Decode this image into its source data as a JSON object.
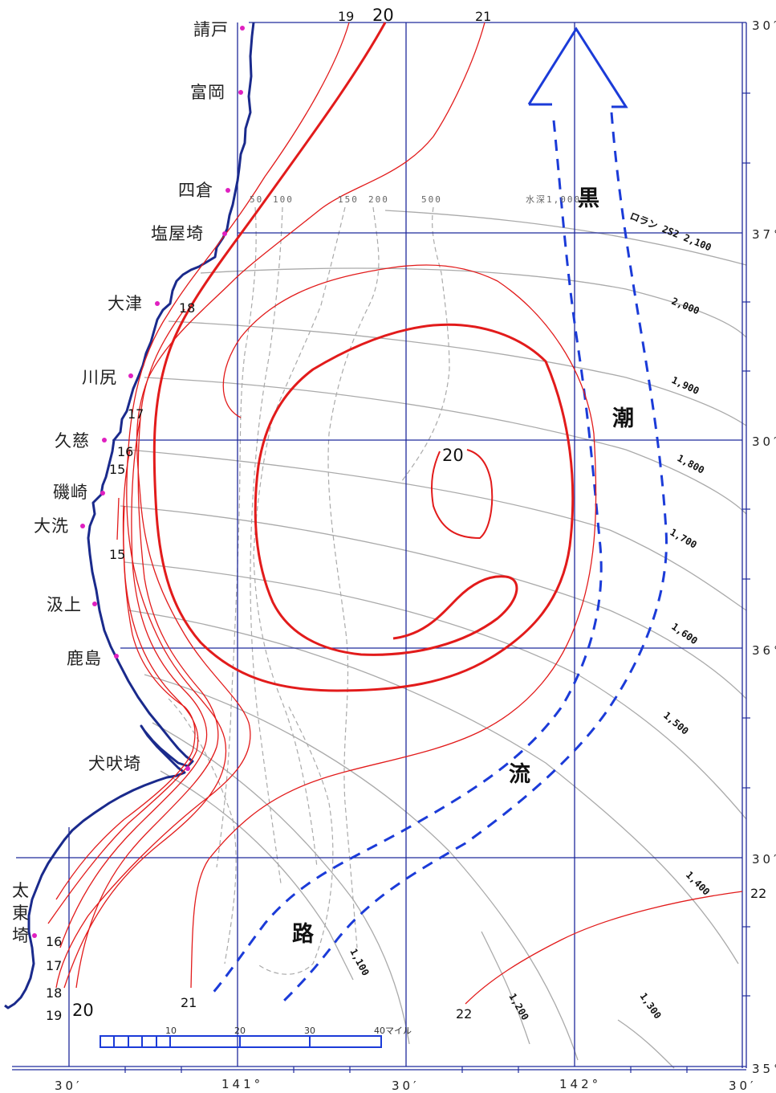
{
  "colors": {
    "grid": "#1f2a9c",
    "coast": "#1a2a8c",
    "isotherm": "#e21b1b",
    "kuroshio": "#1b3bd8",
    "loran": "#aaaaaa",
    "depth": "#aaaaaa",
    "place_marker": "#e020c0"
  },
  "places": [
    "請戸",
    "富岡",
    "四倉",
    "塩屋埼",
    "大津",
    "川尻",
    "久慈",
    "磯崎",
    "大洗",
    "汲上",
    "鹿島",
    "犬吠埼"
  ],
  "place_vertical": [
    "太",
    "東",
    "埼"
  ],
  "lat_labels": [
    "30′",
    "37°",
    "30′",
    "36°",
    "30′",
    "35°"
  ],
  "lon_labels": [
    "30′",
    "141°",
    "30′",
    "142°",
    "30′"
  ],
  "kuroshio_label": [
    "黒",
    "潮",
    "流",
    "路"
  ],
  "isotherm_labels": {
    "top_19": "19",
    "top_20": "20",
    "top_21": "21",
    "t18": "18",
    "t17": "17",
    "t16": "16",
    "t15a": "15",
    "t15b": "15",
    "eddy_20": "20",
    "b16": "16",
    "b17": "17",
    "b18": "18",
    "b19": "19",
    "b20": "20",
    "b21": "21",
    "se22a": "22",
    "se22b": "22"
  },
  "depth_labels": [
    "50",
    "100",
    "150",
    "200",
    "500",
    "水深1,000"
  ],
  "loran_labels": [
    "ロラン 2S2 2,100",
    "2,000",
    "1,900",
    "1,800",
    "1,700",
    "1,600",
    "1,500",
    "1,400",
    "1,300",
    "1,200",
    "1,100"
  ],
  "scale_labels": [
    "10",
    "20",
    "30",
    "40マイル"
  ]
}
